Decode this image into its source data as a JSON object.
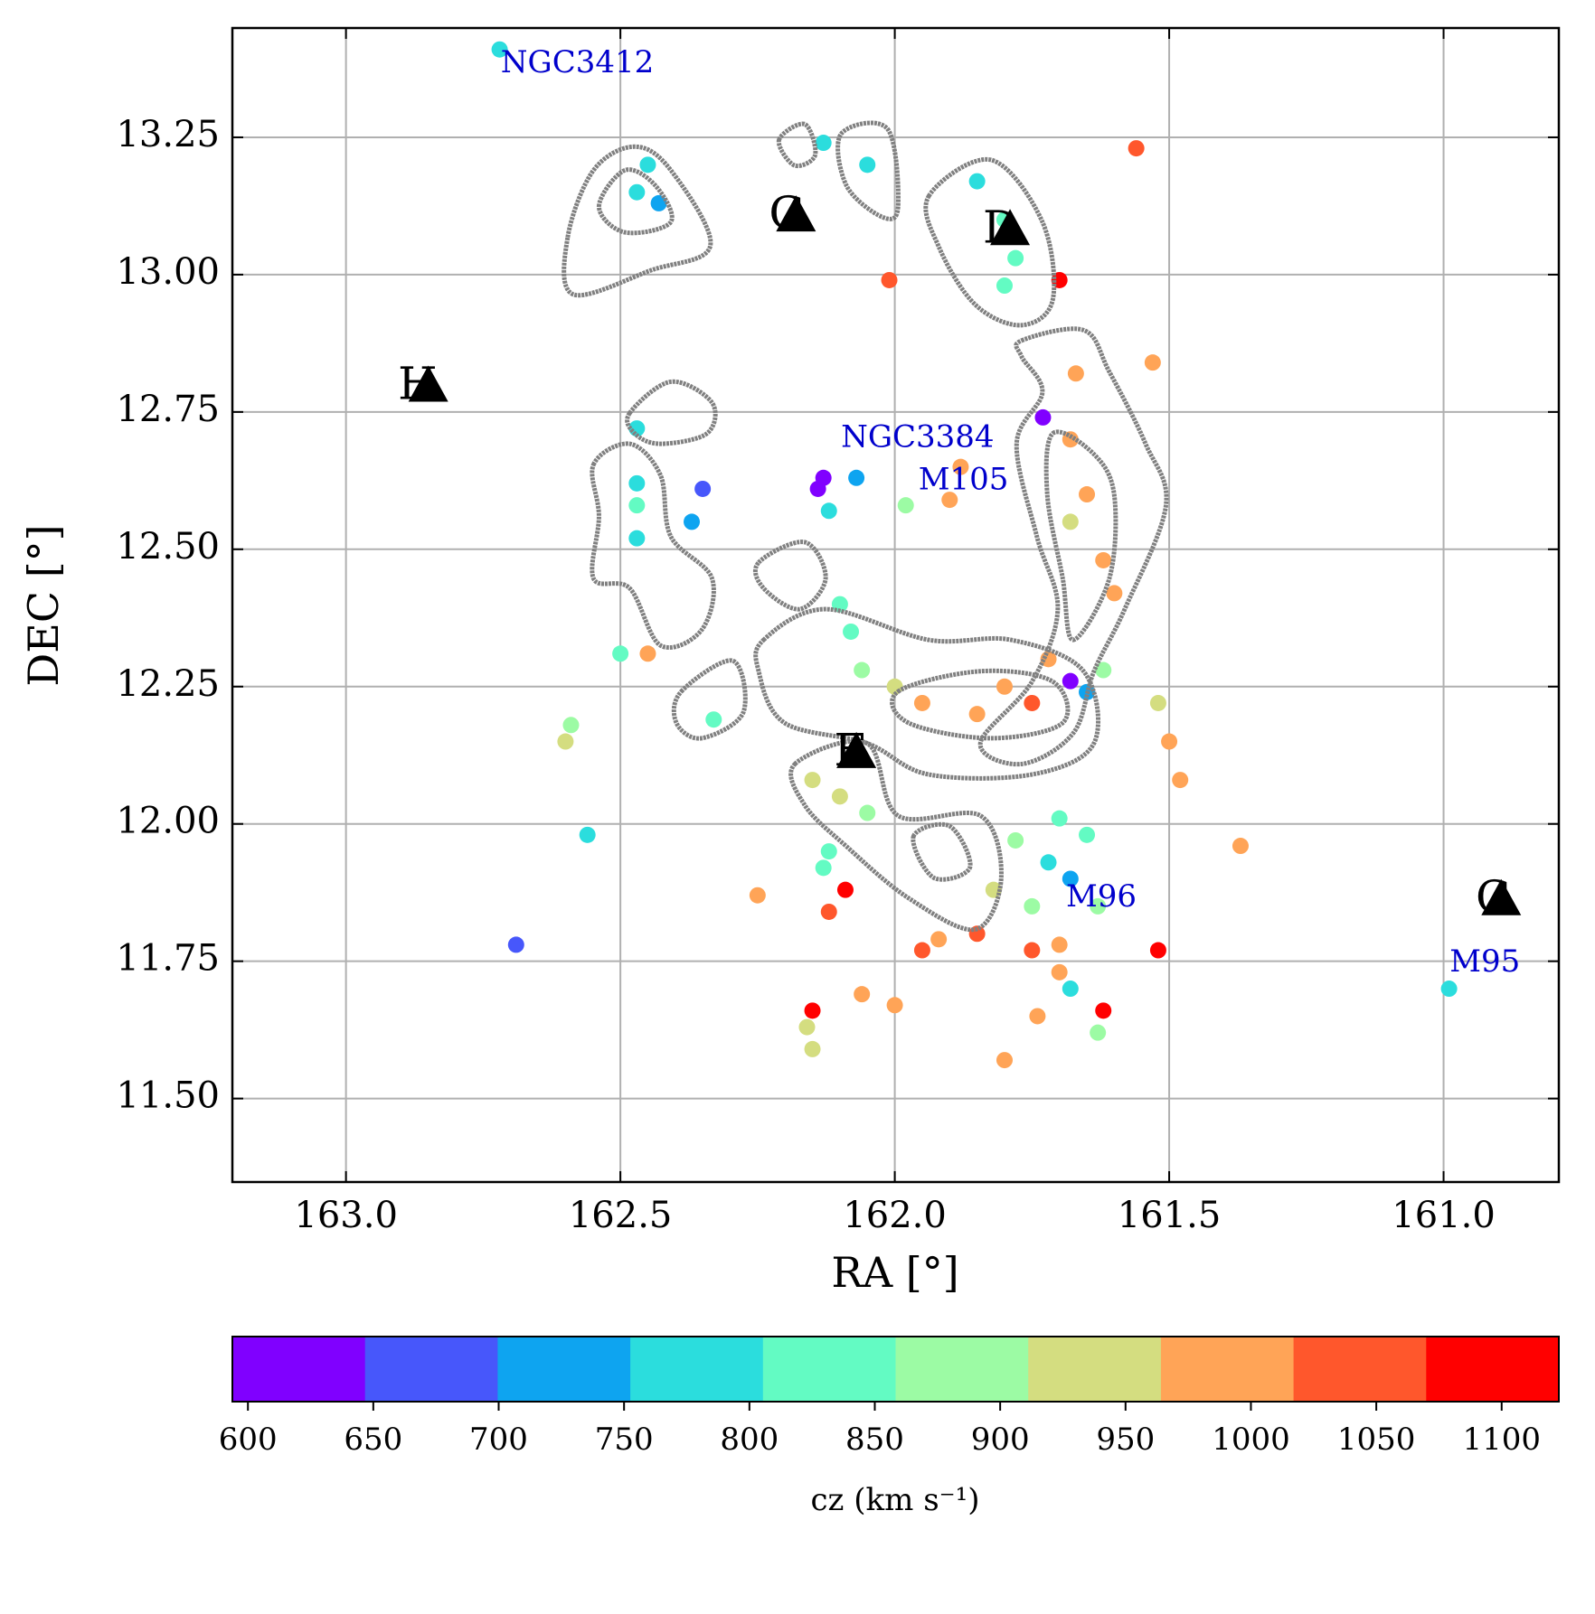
{
  "chart_data": {
    "type": "scatter",
    "xlabel": "RA [°]",
    "ylabel": "DEC [°]",
    "xlim": [
      163.207,
      160.79
    ],
    "ylim": [
      11.348,
      13.449
    ],
    "xticks": [
      {
        "value": 163.0,
        "label": "163.0"
      },
      162.5,
      {
        "value": 162.0,
        "label": "162.0"
      },
      161.5,
      {
        "value": 161.0,
        "label": "161.0"
      }
    ],
    "yticks": [
      {
        "value": 11.5,
        "label": "11.50"
      },
      11.75,
      {
        "value": 12.0,
        "label": "12.00"
      },
      12.25,
      {
        "value": 12.5,
        "label": "12.50"
      },
      12.75,
      {
        "value": 13.0,
        "label": "13.00"
      },
      13.25
    ],
    "grid": true,
    "x": [
      162.72,
      162.47,
      162.45,
      162.43,
      162.13,
      162.05,
      161.85,
      161.8,
      161.78,
      161.8,
      161.7,
      161.56,
      162.01,
      161.67,
      161.53,
      161.73,
      162.13,
      162.14,
      162.07,
      162.12,
      161.98,
      161.9,
      161.88,
      162.35,
      162.37,
      162.47,
      162.47,
      162.47,
      162.47,
      162.5,
      162.45,
      162.59,
      162.6,
      162.56,
      162.69,
      162.33,
      162.1,
      162.08,
      162.06,
      162.0,
      161.95,
      161.85,
      161.75,
      161.8,
      161.72,
      161.68,
      161.65,
      161.62,
      161.68,
      161.65,
      161.62,
      161.6,
      161.68,
      161.52,
      161.5,
      161.48,
      161.37,
      162.15,
      162.1,
      162.05,
      162.12,
      161.72,
      161.68,
      161.75,
      161.82,
      161.65,
      161.7,
      161.78,
      161.63,
      161.7,
      161.75,
      161.85,
      161.92,
      161.95,
      161.7,
      161.74,
      161.8,
      161.63,
      161.62,
      161.68,
      161.52,
      162.06,
      162.0,
      162.15,
      162.16,
      162.15,
      162.25,
      162.12,
      162.09,
      162.13,
      160.99
    ],
    "y": [
      13.41,
      13.15,
      13.2,
      13.13,
      13.24,
      13.2,
      13.17,
      13.1,
      13.03,
      12.98,
      12.99,
      13.23,
      12.99,
      12.82,
      12.84,
      12.74,
      12.63,
      12.61,
      12.63,
      12.57,
      12.58,
      12.59,
      12.65,
      12.61,
      12.55,
      12.72,
      12.62,
      12.58,
      12.52,
      12.31,
      12.31,
      12.18,
      12.15,
      11.98,
      11.78,
      12.19,
      12.4,
      12.35,
      12.28,
      12.25,
      12.22,
      12.2,
      12.22,
      12.25,
      12.3,
      12.26,
      12.24,
      12.28,
      12.7,
      12.6,
      12.48,
      12.42,
      12.55,
      12.22,
      12.15,
      12.08,
      11.96,
      12.08,
      12.05,
      12.02,
      11.95,
      11.93,
      11.9,
      11.85,
      11.88,
      11.98,
      12.01,
      11.97,
      11.85,
      11.78,
      11.77,
      11.8,
      11.79,
      11.77,
      11.73,
      11.65,
      11.57,
      11.62,
      11.66,
      11.7,
      11.77,
      11.69,
      11.67,
      11.66,
      11.63,
      11.59,
      11.87,
      11.84,
      11.88,
      11.92,
      11.7
    ],
    "cz": [
      760,
      780,
      800,
      720,
      800,
      780,
      780,
      820,
      840,
      830,
      1080,
      1050,
      1050,
      1000,
      1000,
      610,
      620,
      630,
      700,
      780,
      880,
      1000,
      1000,
      660,
      700,
      770,
      790,
      820,
      800,
      840,
      1000,
      900,
      920,
      760,
      660,
      850,
      830,
      840,
      880,
      920,
      990,
      1000,
      1030,
      980,
      1000,
      620,
      700,
      880,
      1000,
      980,
      1000,
      1010,
      950,
      960,
      1000,
      1000,
      1000,
      920,
      950,
      900,
      840,
      800,
      740,
      870,
      950,
      810,
      820,
      900,
      900,
      1000,
      1050,
      1030,
      1000,
      1040,
      1000,
      980,
      1000,
      880,
      1090,
      780,
      1090,
      1000,
      1010,
      1090,
      930,
      930,
      1000,
      1020,
      1090,
      830,
      760
    ],
    "markers": [
      {
        "label": "H",
        "ra": 162.85,
        "dec": 12.795
      },
      {
        "label": "G",
        "ra": 162.18,
        "dec": 13.105
      },
      {
        "label": "D",
        "ra": 161.79,
        "dec": 13.08
      },
      {
        "label": "F",
        "ra": 162.07,
        "dec": 12.128
      },
      {
        "label": "C",
        "ra": 160.895,
        "dec": 11.86
      }
    ],
    "galaxies": [
      {
        "label": "NGC3412",
        "ra": 162.718,
        "dec": 13.383
      },
      {
        "label": "NGC3384",
        "ra": 162.098,
        "dec": 12.701
      },
      {
        "label": "M105",
        "ra": 161.957,
        "dec": 12.624
      },
      {
        "label": "M96",
        "ra": 161.688,
        "dec": 11.865
      },
      {
        "label": "M95",
        "ra": 160.989,
        "dec": 11.746
      }
    ],
    "contour_color": "#808080",
    "contours": [
      {
        "ra": [
          162.596,
          162.549,
          162.474,
          162.408,
          162.336,
          162.444,
          162.586
        ],
        "dec": [
          13.068,
          13.19,
          13.233,
          13.19,
          13.053,
          13.008,
          12.964
        ]
      },
      {
        "ra": [
          162.539,
          162.492,
          162.436,
          162.408,
          162.492
        ],
        "dec": [
          13.124,
          13.19,
          13.162,
          13.096,
          13.077
        ]
      },
      {
        "ra": [
          162.211,
          162.164,
          162.145,
          162.183
        ],
        "dec": [
          13.245,
          13.274,
          13.218,
          13.199
        ]
      },
      {
        "ra": [
          162.098,
          162.013,
          161.994,
          162.023,
          162.088
        ],
        "dec": [
          13.256,
          13.265,
          13.124,
          13.105,
          13.162
        ]
      },
      {
        "ra": [
          161.938,
          161.825,
          161.731,
          161.712,
          161.769,
          161.853,
          161.919
        ],
        "dec": [
          13.143,
          13.209,
          13.096,
          12.955,
          12.908,
          12.945,
          13.049
        ]
      },
      {
        "ra": [
          161.769,
          161.656,
          161.609,
          161.543,
          161.506,
          161.581,
          161.637,
          161.675,
          161.769,
          161.844,
          161.75,
          161.703,
          161.741,
          161.778,
          161.731,
          161.769
        ],
        "dec": [
          12.88,
          12.899,
          12.823,
          12.692,
          12.579,
          12.391,
          12.278,
          12.165,
          12.109,
          12.147,
          12.259,
          12.391,
          12.523,
          12.692,
          12.786,
          12.851
        ]
      },
      {
        "ra": [
          161.712,
          161.637,
          161.6,
          161.609,
          161.675,
          161.694,
          161.722
        ],
        "dec": [
          12.711,
          12.673,
          12.598,
          12.447,
          12.335,
          12.447,
          12.598
        ]
      },
      {
        "ra": [
          162.239,
          162.126,
          161.938,
          161.788,
          161.656,
          161.637,
          161.75,
          161.938,
          162.051,
          162.201,
          162.248
        ],
        "dec": [
          12.335,
          12.391,
          12.335,
          12.335,
          12.278,
          12.147,
          12.09,
          12.09,
          12.147,
          12.184,
          12.278
        ]
      },
      {
        "ra": [
          161.994,
          161.844,
          161.712,
          161.694,
          161.825,
          161.975
        ],
        "dec": [
          12.241,
          12.278,
          12.259,
          12.184,
          12.156,
          12.184
        ]
      },
      {
        "ra": [
          162.182,
          162.051,
          161.994,
          161.844,
          161.806,
          161.853,
          161.975,
          162.088,
          162.164
        ],
        "dec": [
          12.109,
          12.147,
          12.015,
          12.015,
          11.902,
          11.808,
          11.865,
          11.959,
          12.034
        ]
      },
      {
        "ra": [
          161.966,
          161.9,
          161.863,
          161.929
        ],
        "dec": [
          11.977,
          11.996,
          11.921,
          11.902
        ]
      },
      {
        "ra": [
          162.549,
          162.483,
          162.427,
          162.408,
          162.333,
          162.352,
          162.427,
          162.483,
          162.549,
          162.539
        ],
        "dec": [
          12.654,
          12.692,
          12.635,
          12.523,
          12.447,
          12.353,
          12.325,
          12.429,
          12.447,
          12.56
        ]
      },
      {
        "ra": [
          162.483,
          162.408,
          162.333,
          162.342,
          162.427,
          162.474
        ],
        "dec": [
          12.748,
          12.805,
          12.767,
          12.711,
          12.692,
          12.711
        ]
      },
      {
        "ra": [
          162.389,
          162.295,
          162.276,
          162.352,
          162.398
        ],
        "dec": [
          12.241,
          12.297,
          12.203,
          12.156,
          12.184
        ]
      },
      {
        "ra": [
          162.248,
          162.164,
          162.126,
          162.173,
          162.239
        ],
        "dec": [
          12.476,
          12.513,
          12.447,
          12.391,
          12.429
        ]
      }
    ],
    "colorbar": {
      "label": "cz (km s⁻¹)",
      "bounds": [
        593.8,
        646.7,
        699.6,
        752.5,
        805.4,
        858.3,
        911.2,
        964.1,
        1017.0,
        1069.9,
        1122.8
      ],
      "colors": [
        "#8000ff",
        "#4757fb",
        "#0ea4f0",
        "#2bdddd",
        "#63fbc3",
        "#9cfba4",
        "#d4dd80",
        "#ffa457",
        "#ff572c",
        "#ff0000"
      ],
      "ticks": [
        600,
        650,
        700,
        750,
        800,
        850,
        900,
        950,
        1000,
        1050,
        1100
      ]
    }
  }
}
